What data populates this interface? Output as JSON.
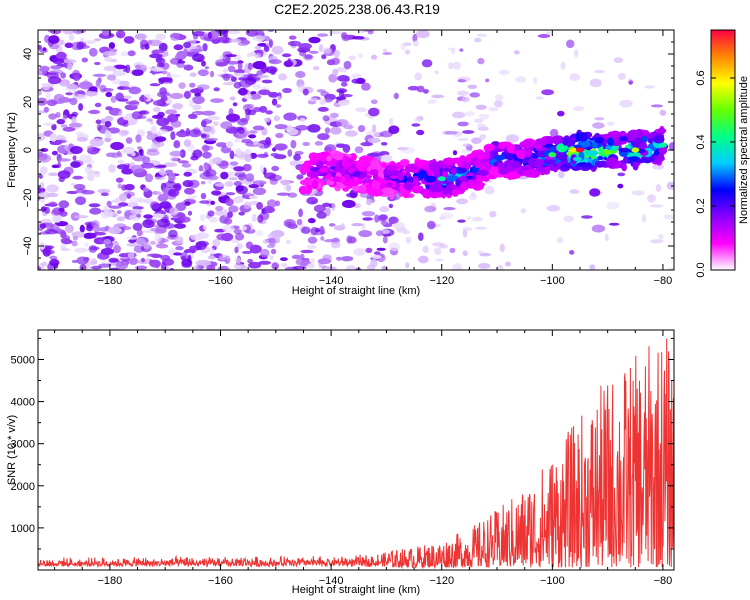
{
  "title": "C2E2.2025.238.06.43.R19",
  "chart_data": [
    {
      "type": "heatmap",
      "title": "C2E2.2025.238.06.43.R19",
      "xlabel": "Height of straight line (km)",
      "ylabel": "Frequency (Hz)",
      "xlim": [
        -193,
        -78
      ],
      "ylim": [
        -50,
        50
      ],
      "xticks": [
        -180,
        -160,
        -140,
        -120,
        -100,
        -80
      ],
      "yticks": [
        -40,
        -20,
        0,
        20,
        40
      ],
      "colorbar": {
        "label": "Normalized spectral amplitude",
        "range": [
          0,
          0.75
        ],
        "ticks": [
          0.0,
          0.2,
          0.4,
          0.6
        ],
        "colormap": [
          "#ffffff",
          "#ff00ff",
          "#8800ff",
          "#0000ff",
          "#00ccff",
          "#00ff88",
          "#66ff00",
          "#ffff00",
          "#ff8800",
          "#ff0044"
        ]
      },
      "signal_band": [
        {
          "height": -145,
          "frequency": -10,
          "amplitude": 0.18
        },
        {
          "height": -140,
          "frequency": -8,
          "amplitude": 0.25
        },
        {
          "height": -135,
          "frequency": -10,
          "amplitude": 0.2
        },
        {
          "height": -130,
          "frequency": -12,
          "amplitude": 0.22
        },
        {
          "height": -125,
          "frequency": -12,
          "amplitude": 0.3
        },
        {
          "height": -120,
          "frequency": -12,
          "amplitude": 0.4
        },
        {
          "height": -115,
          "frequency": -10,
          "amplitude": 0.35
        },
        {
          "height": -110,
          "frequency": -4,
          "amplitude": 0.3
        },
        {
          "height": -105,
          "frequency": -4,
          "amplitude": 0.35
        },
        {
          "height": -100,
          "frequency": -2,
          "amplitude": 0.45
        },
        {
          "height": -95,
          "frequency": 0,
          "amplitude": 0.75
        },
        {
          "height": -90,
          "frequency": -1,
          "amplitude": 0.5
        },
        {
          "height": -85,
          "frequency": 0,
          "amplitude": 0.55
        },
        {
          "height": -80,
          "frequency": 2,
          "amplitude": 0.4
        }
      ],
      "noise_amplitude": 0.08
    },
    {
      "type": "line",
      "xlabel": "Height of straight line (km)",
      "ylabel": "SNR (10 * v/v)",
      "xlim": [
        -193,
        -78
      ],
      "ylim": [
        0,
        5700
      ],
      "xticks": [
        -180,
        -160,
        -140,
        -120,
        -100,
        -80
      ],
      "yticks": [
        1000,
        2000,
        3000,
        4000,
        5000
      ],
      "color": "#ee3333",
      "envelope": [
        {
          "x": -193,
          "y": 300
        },
        {
          "x": -170,
          "y": 330
        },
        {
          "x": -150,
          "y": 350
        },
        {
          "x": -135,
          "y": 380
        },
        {
          "x": -125,
          "y": 550
        },
        {
          "x": -120,
          "y": 700
        },
        {
          "x": -115,
          "y": 1000
        },
        {
          "x": -110,
          "y": 1450
        },
        {
          "x": -105,
          "y": 2000
        },
        {
          "x": -100,
          "y": 2800
        },
        {
          "x": -95,
          "y": 3700
        },
        {
          "x": -90,
          "y": 4600
        },
        {
          "x": -85,
          "y": 5100
        },
        {
          "x": -80,
          "y": 5700
        },
        {
          "x": -78,
          "y": 5400
        }
      ]
    }
  ]
}
